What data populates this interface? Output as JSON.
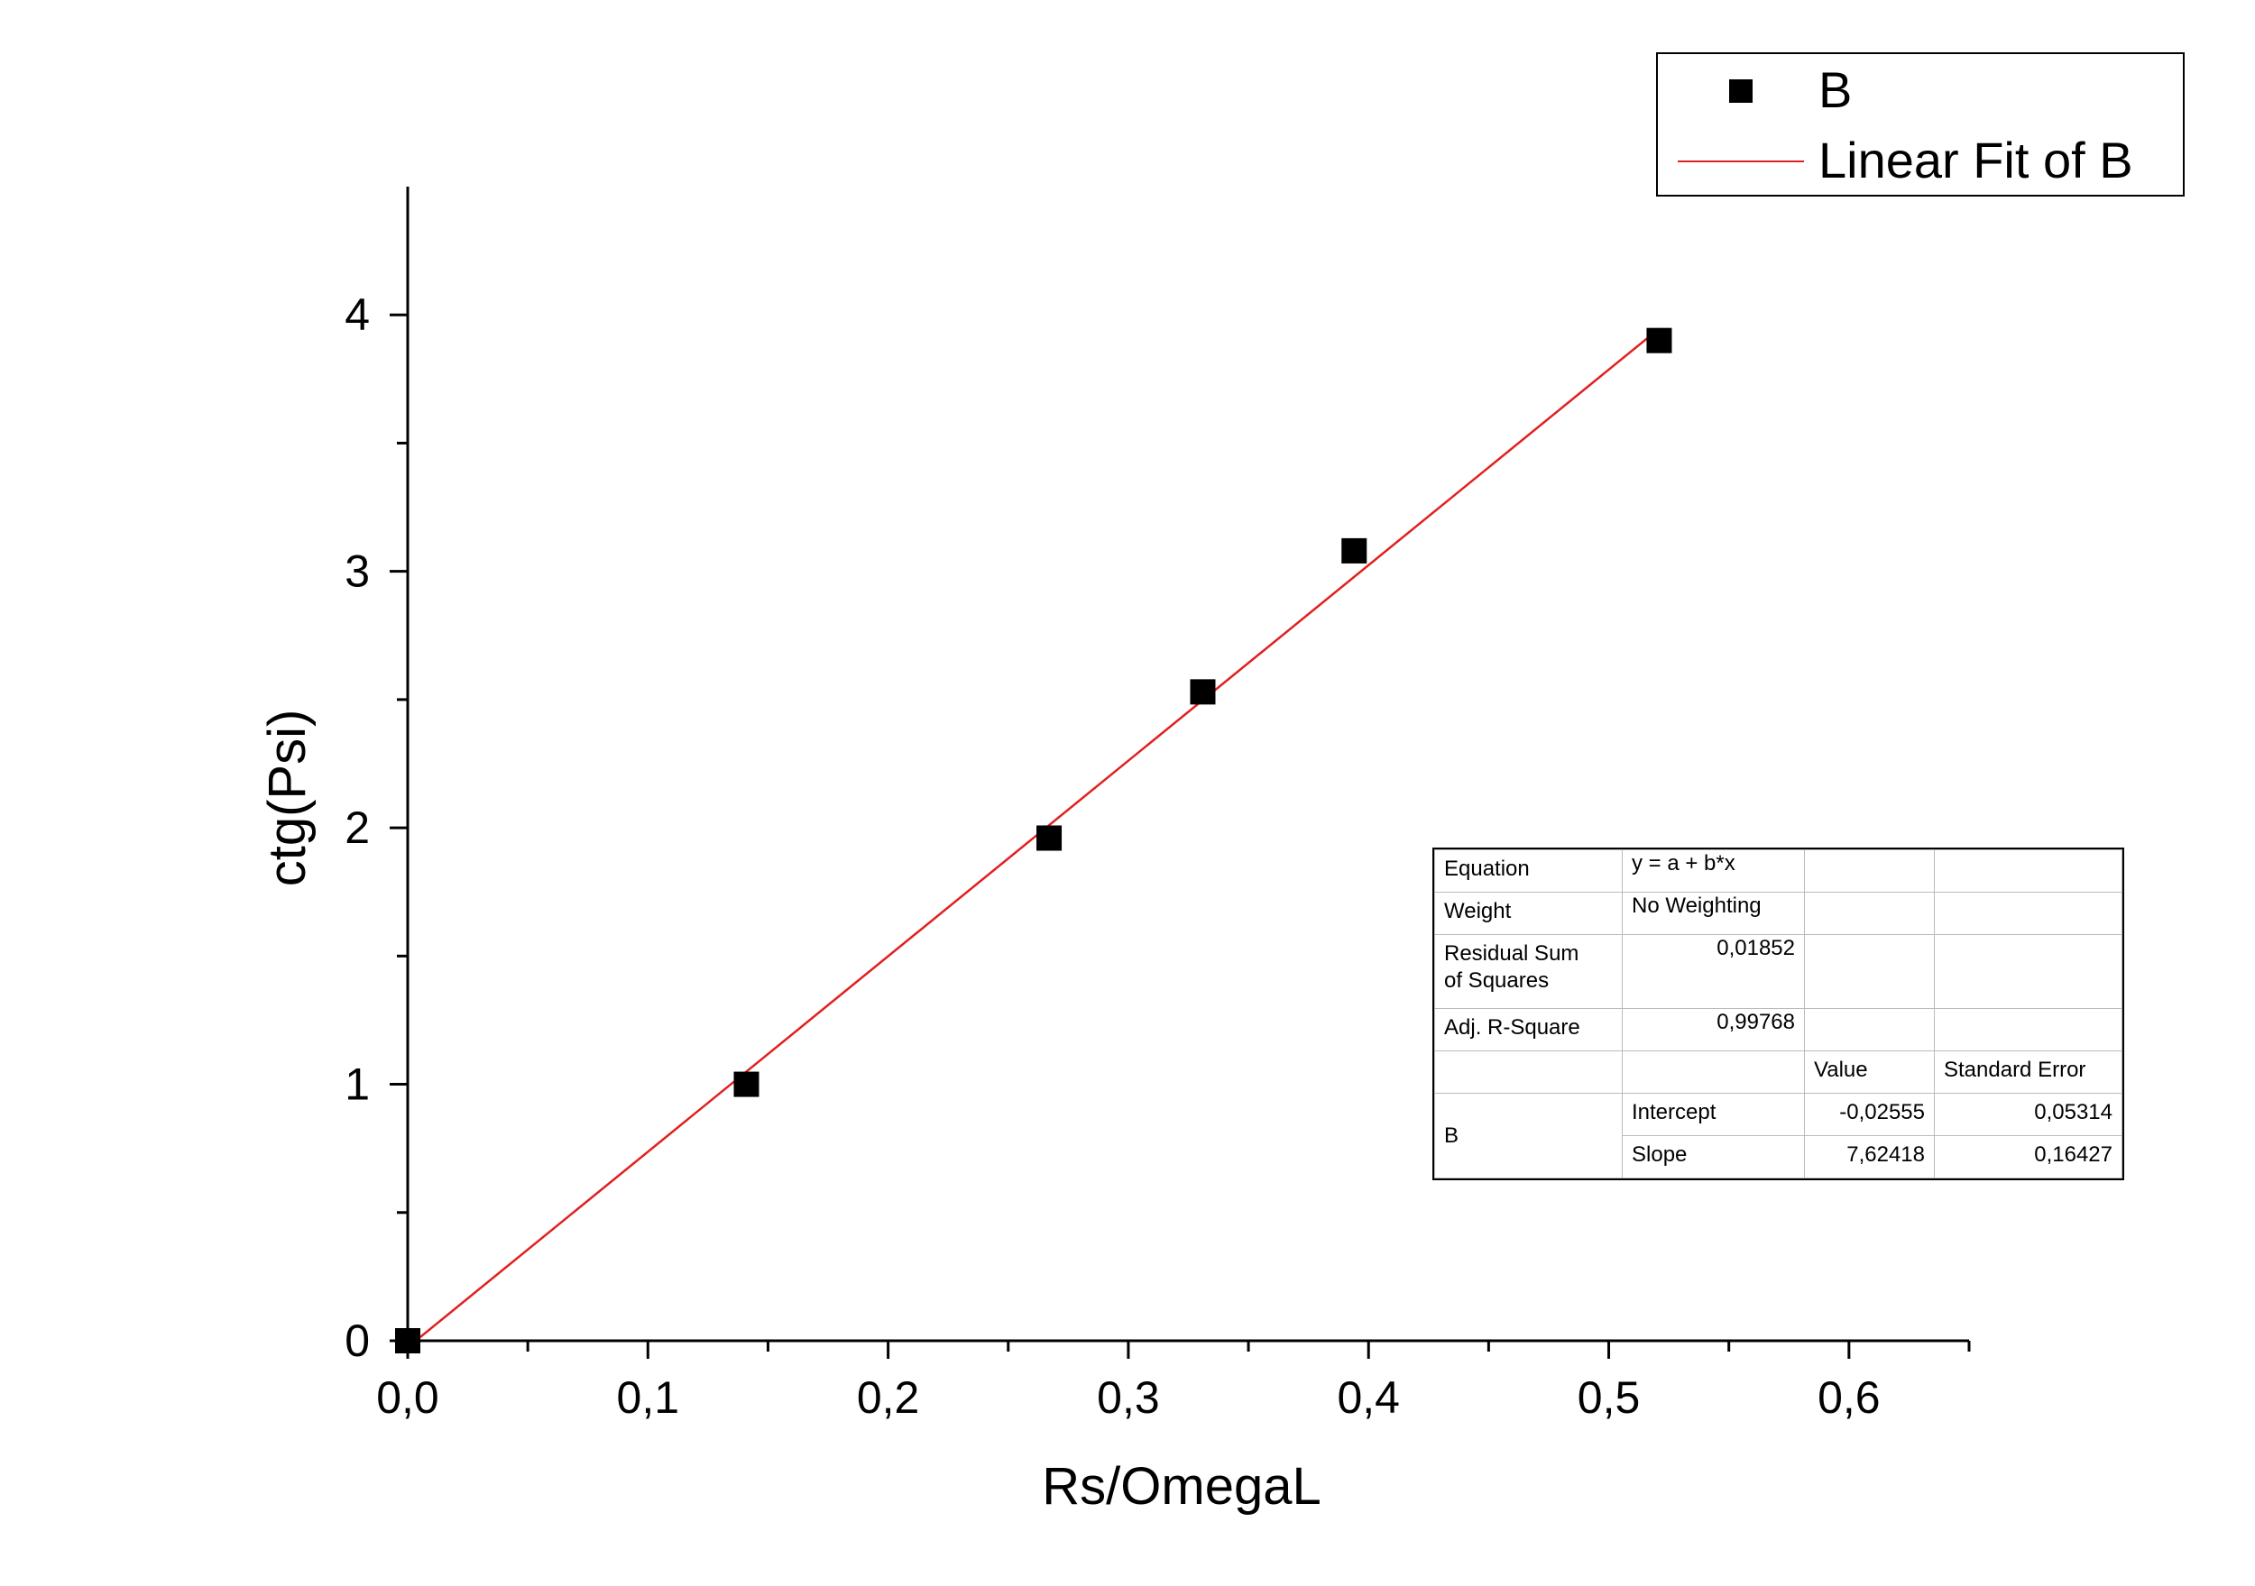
{
  "chart_data": {
    "type": "scatter",
    "xlabel": "Rs/OmegaL",
    "ylabel": "ctg(Psi)",
    "xlim": [
      0,
      0.65
    ],
    "ylim": [
      0,
      4.5
    ],
    "x_ticks": [
      "0,0",
      "0,1",
      "0,2",
      "0,3",
      "0,4",
      "0,5",
      "0,6"
    ],
    "x_tick_values": [
      0,
      0.1,
      0.2,
      0.3,
      0.4,
      0.5,
      0.6
    ],
    "y_ticks": [
      "0",
      "1",
      "2",
      "3",
      "4"
    ],
    "y_tick_values": [
      0,
      1,
      2,
      3,
      4
    ],
    "series": [
      {
        "name": "B",
        "marker": "square",
        "color": "#000000",
        "x": [
          0.0,
          0.141,
          0.267,
          0.331,
          0.394,
          0.521
        ],
        "y": [
          0.0,
          1.0,
          1.96,
          2.53,
          3.08,
          3.9
        ]
      }
    ],
    "fit": {
      "name": "Linear Fit of B",
      "color": "#e02020",
      "intercept": -0.02555,
      "slope": 7.62418,
      "x_range": [
        0.0,
        0.521
      ]
    },
    "legend": {
      "placement": "top-right",
      "entries": [
        "B",
        "Linear Fit of B"
      ]
    },
    "grid": false
  },
  "fit_table": {
    "equation_label": "Equation",
    "equation_value": "y = a + b*x",
    "weight_label": "Weight",
    "weight_value": "No Weighting",
    "rss_label_1": "Residual Sum",
    "rss_label_2": "of Squares",
    "rss_value": "0,01852",
    "adj_r_label": "Adj. R-Square",
    "adj_r_value": "0,99768",
    "value_header": "Value",
    "stderr_header": "Standard Error",
    "group_label": "B",
    "intercept_label": "Intercept",
    "intercept_value": "-0,02555",
    "intercept_error": "0,05314",
    "slope_label": "Slope",
    "slope_value": "7,62418",
    "slope_error": "0,16427"
  }
}
